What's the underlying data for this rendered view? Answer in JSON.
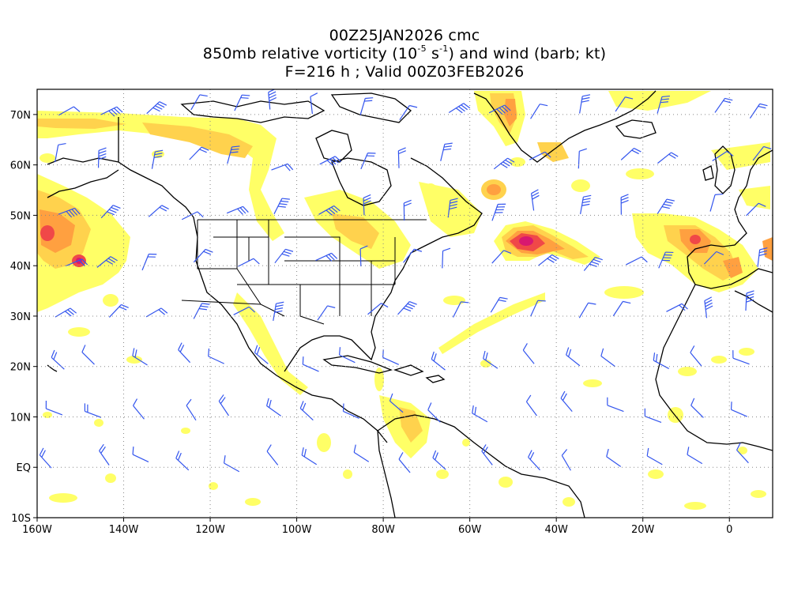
{
  "title": {
    "line1": "00Z25JAN2026 cmc",
    "line2_pre": "850mb relative vorticity (10",
    "line2_exp1": "-5",
    "line2_mid": " s",
    "line2_exp2": "-1",
    "line2_post": ") and wind (barb; kt)",
    "line3": "F=216 h ; Valid 00Z03FEB2026"
  },
  "axes": {
    "lat_labels": [
      "70N",
      "60N",
      "50N",
      "40N",
      "30N",
      "20N",
      "10N",
      "EQ",
      "10S"
    ],
    "lon_labels": [
      "160W",
      "140W",
      "120W",
      "100W",
      "80W",
      "60W",
      "40W",
      "20W",
      "0"
    ],
    "lat_values": [
      70,
      60,
      50,
      40,
      30,
      20,
      10,
      0,
      -10
    ],
    "lon_values": [
      -160,
      -140,
      -120,
      -100,
      -80,
      -60,
      -40,
      -20,
      0
    ],
    "lon_range": [
      -160,
      10
    ],
    "lat_range": [
      -10,
      75
    ],
    "grid": "dotted"
  },
  "colors": {
    "shade_light": "#ffff66",
    "shade_mid": "#ffd24d",
    "shade_orange": "#ffa040",
    "shade_red": "#f04848",
    "shade_core": "#d81870",
    "coast": "#000000",
    "barb": "#3355ee"
  },
  "vorticity_features": [
    {
      "name": "north-pacific-low",
      "lon": -151,
      "lat": 44,
      "level": 4
    },
    {
      "name": "gulf-of-alaska-band",
      "lon": -150,
      "lat": 53,
      "level": 2
    },
    {
      "name": "western-atlantic-cyclone",
      "lon": -48,
      "lat": 45,
      "level": 5
    },
    {
      "name": "newfoundland-spot",
      "lon": -54,
      "lat": 55,
      "level": 3
    },
    {
      "name": "iberian-low",
      "lon": -7,
      "lat": 43,
      "level": 4
    },
    {
      "name": "greenland-east",
      "lon": -46,
      "lat": 72,
      "level": 4
    },
    {
      "name": "canadian-arctic-band",
      "lon": -110,
      "lat": 63,
      "level": 2
    }
  ]
}
